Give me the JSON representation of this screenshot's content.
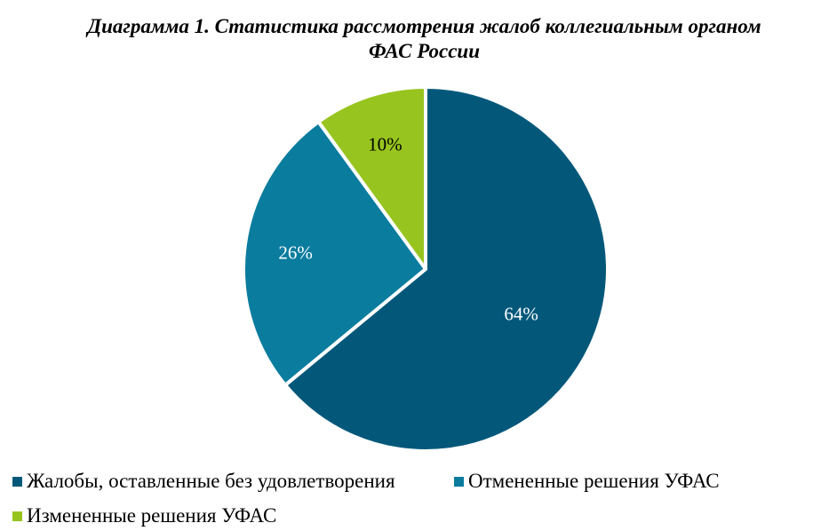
{
  "chart_data": {
    "type": "pie",
    "title_line1": "Диаграмма 1. Статистика рассмотрения жалоб коллегиальным органом",
    "title_line2": "ФАС России",
    "slices": [
      {
        "label": "Жалобы, оставленные без удовлетворения",
        "value": 64,
        "display": "64%",
        "color": "#03587a",
        "label_color": "#ffffff"
      },
      {
        "label": "Отмененные решения УФАС",
        "value": 26,
        "display": "26%",
        "color": "#0a7c9e",
        "label_color": "#ffffff"
      },
      {
        "label": "Измененные решения УФАС",
        "value": 10,
        "display": "10%",
        "color": "#97c41e",
        "label_color": "#000000"
      }
    ],
    "start": "12 o'clock",
    "direction": "clockwise",
    "legend_position": "bottom"
  }
}
